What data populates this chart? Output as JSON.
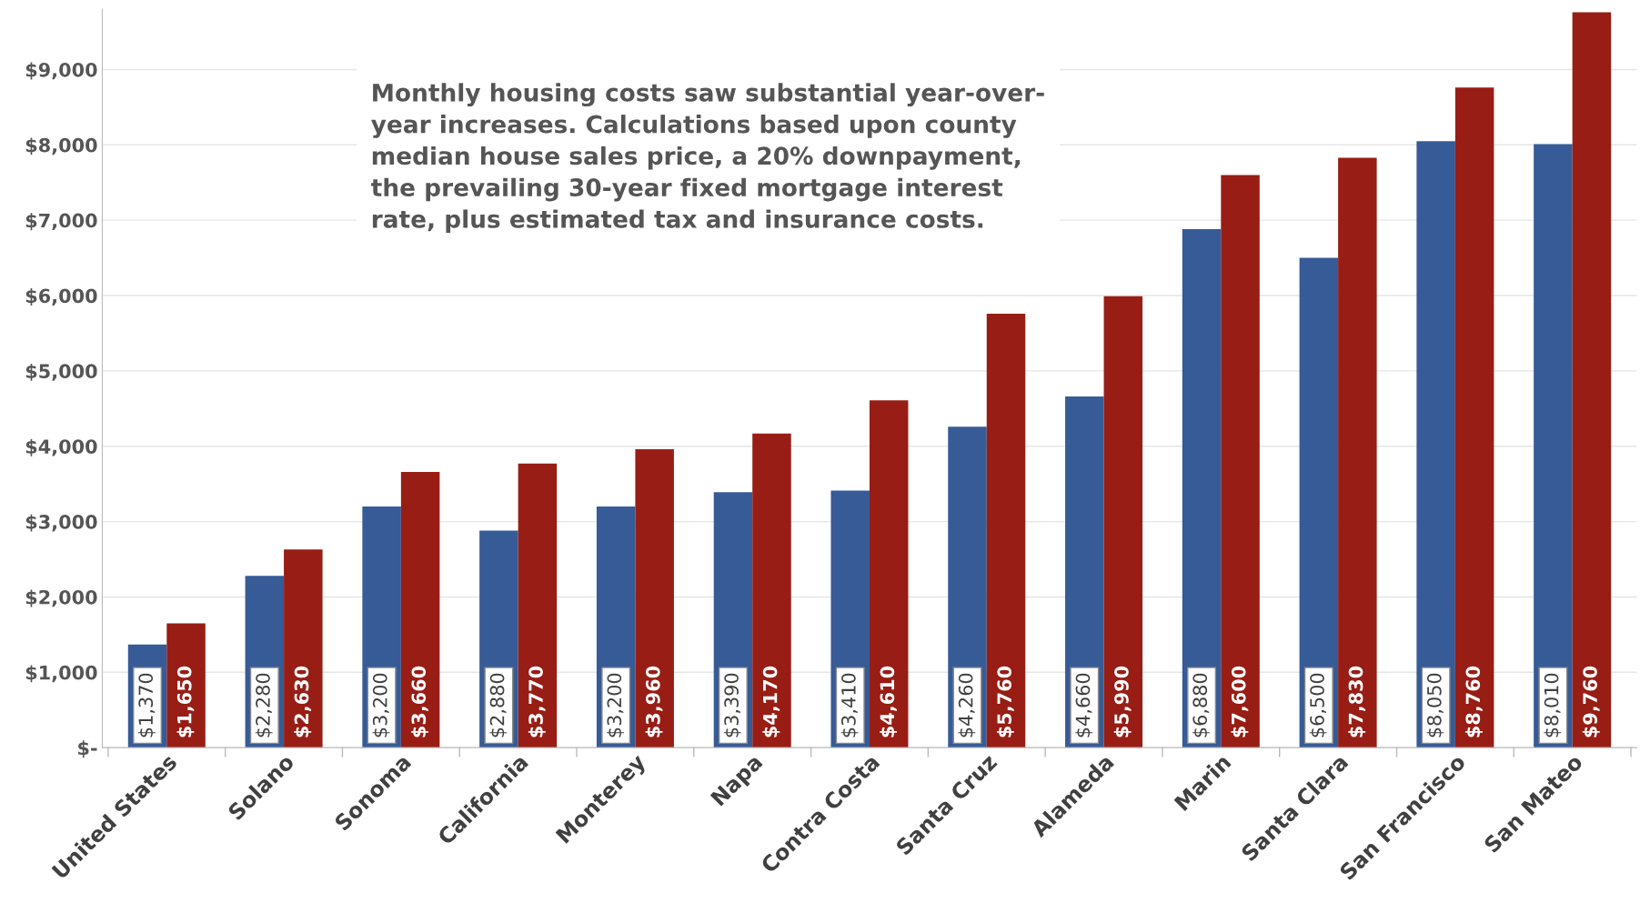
{
  "chart_data": {
    "type": "bar",
    "categories": [
      "United States",
      "Solano",
      "Sonoma",
      "California",
      "Monterey",
      "Napa",
      "Contra Costa",
      "Santa Cruz",
      "Alameda",
      "Marin",
      "Santa Clara",
      "San Francisco",
      "San Mateo"
    ],
    "series": [
      {
        "color": "#365b96",
        "values": [
          1370,
          2280,
          3200,
          2880,
          3200,
          3390,
          3410,
          4260,
          4660,
          6880,
          6500,
          8050,
          8010
        ],
        "value_labels": [
          "$1,370",
          "$2,280",
          "$3,200",
          "$2,880",
          "$3,200",
          "$3,390",
          "$3,410",
          "$4,260",
          "$4,660",
          "$6,880",
          "$6,500",
          "$8,050",
          "$8,010"
        ]
      },
      {
        "color": "#981d15",
        "values": [
          1650,
          2630,
          3660,
          3770,
          3960,
          4170,
          4610,
          5760,
          5990,
          7600,
          7830,
          8760,
          9760
        ],
        "value_labels": [
          "$1,650",
          "$2,630",
          "$3,660",
          "$3,770",
          "$3,960",
          "$4,170",
          "$4,610",
          "$5,760",
          "$5,990",
          "$7,600",
          "$7,830",
          "$8,760",
          "$9,760"
        ]
      }
    ],
    "ylim": [
      0,
      9800
    ],
    "yticks": [
      {
        "value": 0,
        "label": "$-"
      },
      {
        "value": 1000,
        "label": "$1,000"
      },
      {
        "value": 2000,
        "label": "$2,000"
      },
      {
        "value": 3000,
        "label": "$3,000"
      },
      {
        "value": 4000,
        "label": "$4,000"
      },
      {
        "value": 5000,
        "label": "$5,000"
      },
      {
        "value": 6000,
        "label": "$6,000"
      },
      {
        "value": 7000,
        "label": "$7,000"
      },
      {
        "value": 8000,
        "label": "$8,000"
      },
      {
        "value": 9000,
        "label": "$9,000"
      }
    ],
    "grid": "y",
    "annotations": [
      "Monthly housing costs saw substantial year-over-\nyear increases. Calculations based upon county\nmedian house sales price, a 20% downpayment,\nthe prevailing 30-year fixed mortgage interest\nrate, plus estimated tax and insurance costs."
    ]
  }
}
